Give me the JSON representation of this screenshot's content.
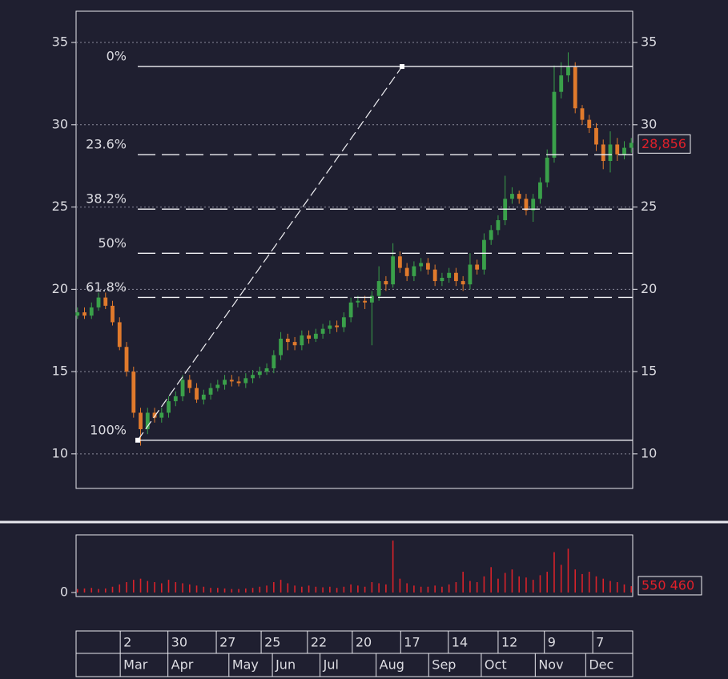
{
  "chart_data": {
    "type": "candlestick",
    "ylim": [
      7.9,
      36.9
    ],
    "yticks": [
      10,
      15,
      20,
      25,
      30,
      35
    ],
    "xlim": [
      -0.2,
      79.2
    ],
    "grid": true,
    "up_color": "#3aa04a",
    "down_color": "#e07a2c",
    "volume_color": "#d8222a",
    "open": [
      18.4,
      18.6,
      18.4,
      18.9,
      19.5,
      19,
      18,
      16.5,
      15,
      12.5,
      11.5,
      12.5,
      12.2,
      12.5,
      13.2,
      13.5,
      14.5,
      14,
      13.3,
      13.6,
      14,
      14.2,
      14.5,
      14.4,
      14.3,
      14.6,
      14.8,
      15,
      15.2,
      16,
      17,
      16.8,
      16.6,
      17.2,
      17,
      17.3,
      17.6,
      17.8,
      17.7,
      18.3,
      19.2,
      19.3,
      19.2,
      19.6,
      20.5,
      20.3,
      22,
      21.3,
      20.8,
      21.4,
      21.6,
      21.2,
      20.5,
      20.7,
      21,
      20.5,
      20.3,
      21.5,
      21.2,
      23,
      23.6,
      24.2,
      25.5,
      25.8,
      25.5,
      24.8,
      25.5,
      26.5,
      28,
      32,
      33,
      33.5,
      31,
      30.3,
      29.8,
      28.8,
      27.8,
      28.8,
      28.2,
      28.6
    ],
    "high": [
      18.9,
      18.9,
      19.2,
      19.8,
      19.8,
      19.3,
      18.3,
      16.8,
      15.3,
      12.8,
      12.8,
      12.8,
      12.8,
      13.5,
      13.8,
      14.8,
      14.8,
      14.3,
      13.9,
      14.3,
      14.5,
      14.8,
      14.8,
      14.7,
      14.9,
      15.1,
      15.3,
      15.5,
      16.3,
      17.4,
      17.3,
      17.1,
      17.5,
      17.5,
      17.6,
      17.9,
      18.1,
      18.1,
      18.6,
      19.5,
      19.6,
      19.6,
      19.9,
      21.4,
      20.8,
      22.8,
      22.3,
      21.6,
      21.7,
      21.9,
      21.9,
      21.5,
      21,
      21.3,
      21.3,
      20.8,
      22.2,
      21.8,
      23.4,
      23.9,
      24.5,
      26.9,
      26.2,
      26,
      25.8,
      25.8,
      26.8,
      28.5,
      33.6,
      33.8,
      34.4,
      33.8,
      31.2,
      30.6,
      30.1,
      29.1,
      29.6,
      29.2,
      29,
      29.2
    ],
    "low": [
      18.2,
      18.2,
      18.2,
      18.7,
      18.8,
      17.8,
      16.3,
      14.7,
      12.2,
      10.5,
      11.2,
      11.9,
      11.9,
      12.2,
      12.9,
      13.2,
      13.7,
      13.1,
      13,
      13.3,
      13.8,
      13.9,
      14.1,
      14.1,
      14,
      14.3,
      14.6,
      14.8,
      14.9,
      15.7,
      16.3,
      16.3,
      16.3,
      16.7,
      16.8,
      17,
      17.3,
      17.4,
      17.4,
      18,
      18.9,
      18.8,
      16.6,
      19.3,
      19.9,
      20.1,
      21,
      20.5,
      20.5,
      21.1,
      20.9,
      20.2,
      20.2,
      20.4,
      20.2,
      19.9,
      20,
      20.9,
      20.9,
      22.7,
      23.3,
      23.9,
      25.2,
      25.2,
      24.5,
      24.1,
      25.2,
      26.2,
      27.7,
      31.6,
      32.6,
      30.7,
      30,
      29.5,
      28.4,
      27.3,
      27.1,
      27.8,
      27.9,
      28.3
    ],
    "close": [
      18.6,
      18.4,
      18.9,
      19.5,
      19,
      18,
      16.5,
      15,
      12.5,
      11.5,
      12.5,
      12.2,
      12.5,
      13.2,
      13.5,
      14.5,
      14,
      13.3,
      13.6,
      14,
      14.2,
      14.5,
      14.4,
      14.3,
      14.6,
      14.8,
      15,
      15.2,
      16,
      17,
      16.8,
      16.6,
      17.2,
      17,
      17.3,
      17.6,
      17.8,
      17.7,
      18.3,
      19.2,
      19.3,
      19.2,
      19.6,
      20.5,
      20.3,
      22,
      21.3,
      20.8,
      21.4,
      21.6,
      21.2,
      20.5,
      20.7,
      21,
      20.5,
      20.3,
      21.5,
      21.2,
      23,
      23.6,
      24.2,
      25.5,
      25.8,
      25.5,
      24.8,
      25.5,
      26.5,
      28,
      32,
      33,
      33.5,
      31,
      30.3,
      29.8,
      28.8,
      27.8,
      28.8,
      28.2,
      28.6,
      28.9
    ],
    "volume": [
      300000,
      350000,
      400000,
      300000,
      350000,
      500000,
      700000,
      900000,
      1100000,
      1200000,
      1000000,
      900000,
      800000,
      1100000,
      900000,
      800000,
      700000,
      600000,
      500000,
      400000,
      400000,
      350000,
      300000,
      300000,
      350000,
      400000,
      500000,
      600000,
      900000,
      1100000,
      800000,
      600000,
      500000,
      600000,
      500000,
      450000,
      500000,
      400000,
      500000,
      700000,
      600000,
      500000,
      900000,
      800000,
      700000,
      4500000,
      1200000,
      800000,
      600000,
      500000,
      500000,
      600000,
      500000,
      700000,
      900000,
      1800000,
      1000000,
      900000,
      1400000,
      2200000,
      1200000,
      1700000,
      2000000,
      1400000,
      1300000,
      1100000,
      1500000,
      1800000,
      3500000,
      2400000,
      3800000,
      2000000,
      1600000,
      1800000,
      1400000,
      1200000,
      1000000,
      900000,
      700000,
      550460
    ],
    "volume_ylim": [
      -350000,
      5000000
    ],
    "volume_yticks": [
      0
    ],
    "last_price": {
      "value": 28.856,
      "label": "28,856"
    },
    "last_volume": {
      "value": 550460,
      "label": "550 460"
    },
    "fibonacci": {
      "start_x": 8.6,
      "end_x": 46.3,
      "levels": [
        {
          "label": "0%",
          "value": 33.54
        },
        {
          "label": "23.6%",
          "value": 28.18
        },
        {
          "label": "38.2%",
          "value": 24.87
        },
        {
          "label": "50%",
          "value": 22.19
        },
        {
          "label": "61.8%",
          "value": 19.51
        },
        {
          "label": "100%",
          "value": 10.83
        }
      ]
    },
    "xticks": [
      {
        "value": 6.1,
        "label": "2"
      },
      {
        "value": 12.9,
        "label": "30"
      },
      {
        "value": 19.8,
        "label": "27"
      },
      {
        "value": 26.2,
        "label": "25"
      },
      {
        "value": 32.8,
        "label": "22"
      },
      {
        "value": 39.2,
        "label": "20"
      },
      {
        "value": 46.1,
        "label": "17"
      },
      {
        "value": 52.9,
        "label": "14"
      },
      {
        "value": 60,
        "label": "12"
      },
      {
        "value": 66.6,
        "label": "9"
      },
      {
        "value": 73.5,
        "label": "7"
      }
    ],
    "month_ticks": [
      {
        "value": 6.1,
        "label": "Mar"
      },
      {
        "value": 12.9,
        "label": "Apr"
      },
      {
        "value": 21.6,
        "label": "May"
      },
      {
        "value": 27.8,
        "label": "Jun"
      },
      {
        "value": 34.6,
        "label": "Jul"
      },
      {
        "value": 42.6,
        "label": "Aug"
      },
      {
        "value": 50.1,
        "label": "Sep"
      },
      {
        "value": 57.6,
        "label": "Oct"
      },
      {
        "value": 65.3,
        "label": "Nov"
      },
      {
        "value": 72.5,
        "label": "Dec"
      }
    ]
  }
}
